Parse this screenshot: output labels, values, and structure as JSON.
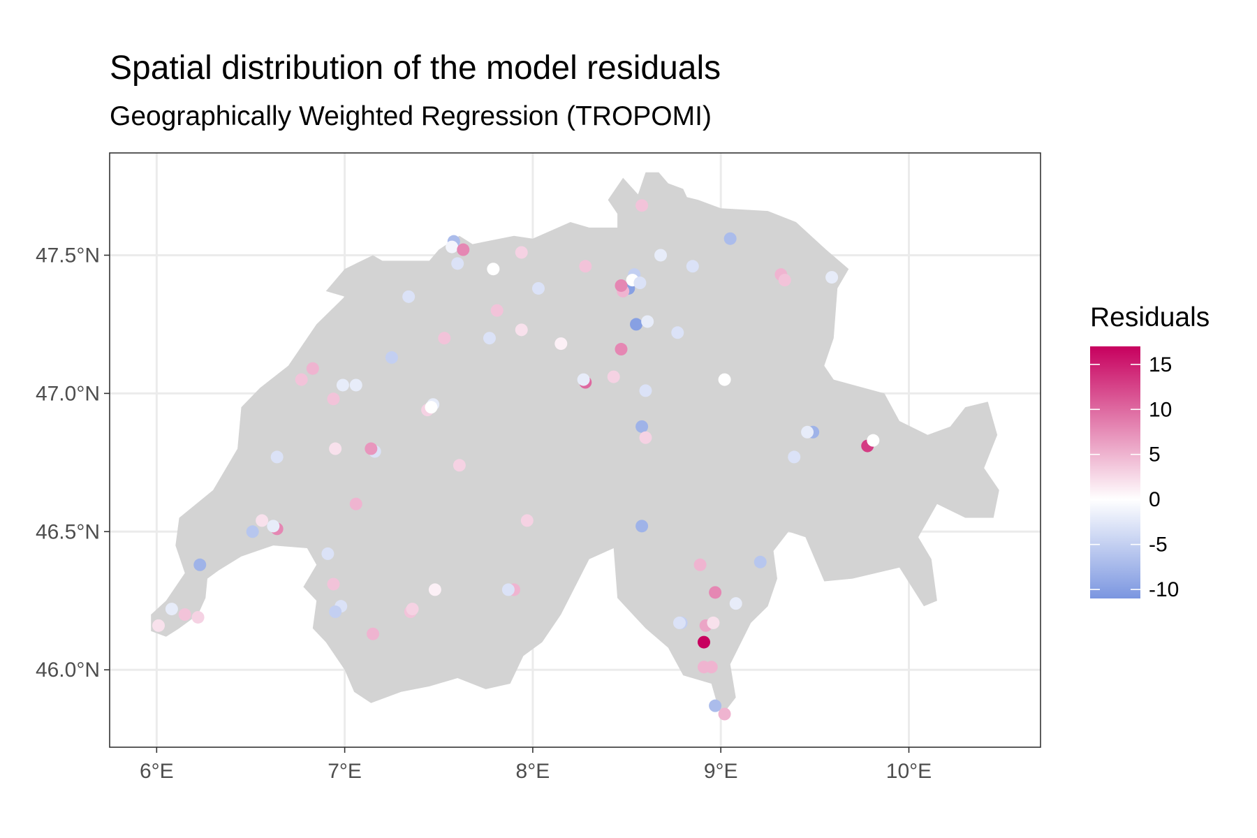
{
  "title": "Spatial distribution of the model residuals",
  "subtitle": "Geographically Weighted Regression (TROPOMI)",
  "colors": {
    "low": "#7b96e0",
    "mid": "#ffffff",
    "high": "#c7005e",
    "land": "#d3d3d3",
    "grid": "#ebebeb",
    "panel_border": "#333333"
  },
  "chart_data": {
    "type": "scatter",
    "title": "Spatial distribution of the model residuals",
    "subtitle": "Geographically Weighted Regression (TROPOMI)",
    "xlabel": "",
    "ylabel": "",
    "xlim": [
      5.75,
      10.7
    ],
    "ylim": [
      45.72,
      47.87
    ],
    "x_ticks": [
      6,
      7,
      8,
      9,
      10
    ],
    "x_tick_labels": [
      "6°E",
      "7°E",
      "8°E",
      "9°E",
      "10°E"
    ],
    "y_ticks": [
      46.0,
      46.5,
      47.0,
      47.5
    ],
    "y_tick_labels": [
      "46.0°N",
      "46.5°N",
      "47.0°N",
      "47.5°N"
    ],
    "grid": true,
    "legend": {
      "title": "Residuals",
      "placement": "right",
      "range": [
        -11,
        17
      ],
      "breaks": [
        15,
        10,
        5,
        0,
        -5,
        -10
      ],
      "break_labels": [
        "15",
        "10",
        "5",
        "0",
        "-5",
        "-10"
      ]
    },
    "region_outline": [
      [
        5.97,
        46.14
      ],
      [
        6.05,
        46.12
      ],
      [
        6.12,
        46.15
      ],
      [
        6.22,
        46.2
      ],
      [
        6.26,
        46.26
      ],
      [
        6.27,
        46.33
      ],
      [
        6.33,
        46.36
      ],
      [
        6.45,
        46.41
      ],
      [
        6.62,
        46.45
      ],
      [
        6.8,
        46.44
      ],
      [
        6.85,
        46.38
      ],
      [
        6.78,
        46.3
      ],
      [
        6.85,
        46.25
      ],
      [
        6.83,
        46.15
      ],
      [
        6.9,
        46.1
      ],
      [
        7.0,
        46.0
      ],
      [
        7.05,
        45.92
      ],
      [
        7.14,
        45.88
      ],
      [
        7.3,
        45.92
      ],
      [
        7.45,
        45.94
      ],
      [
        7.6,
        45.97
      ],
      [
        7.75,
        45.93
      ],
      [
        7.88,
        45.95
      ],
      [
        7.95,
        46.05
      ],
      [
        8.05,
        46.1
      ],
      [
        8.15,
        46.2
      ],
      [
        8.3,
        46.4
      ],
      [
        8.43,
        46.44
      ],
      [
        8.45,
        46.26
      ],
      [
        8.6,
        46.15
      ],
      [
        8.72,
        46.08
      ],
      [
        8.8,
        45.98
      ],
      [
        8.95,
        45.95
      ],
      [
        9.0,
        45.83
      ],
      [
        9.08,
        45.9
      ],
      [
        9.05,
        46.02
      ],
      [
        9.16,
        46.17
      ],
      [
        9.25,
        46.23
      ],
      [
        9.3,
        46.33
      ],
      [
        9.28,
        46.43
      ],
      [
        9.36,
        46.5
      ],
      [
        9.45,
        46.48
      ],
      [
        9.55,
        46.32
      ],
      [
        9.7,
        46.33
      ],
      [
        9.95,
        46.37
      ],
      [
        10.08,
        46.23
      ],
      [
        10.15,
        46.25
      ],
      [
        10.12,
        46.4
      ],
      [
        10.05,
        46.48
      ],
      [
        10.15,
        46.6
      ],
      [
        10.3,
        46.55
      ],
      [
        10.45,
        46.55
      ],
      [
        10.48,
        46.65
      ],
      [
        10.4,
        46.73
      ],
      [
        10.47,
        46.85
      ],
      [
        10.42,
        46.97
      ],
      [
        10.3,
        46.95
      ],
      [
        10.22,
        46.88
      ],
      [
        10.1,
        46.85
      ],
      [
        9.95,
        46.9
      ],
      [
        9.87,
        47.0
      ],
      [
        9.6,
        47.05
      ],
      [
        9.55,
        47.1
      ],
      [
        9.6,
        47.2
      ],
      [
        9.62,
        47.38
      ],
      [
        9.68,
        47.45
      ],
      [
        9.56,
        47.52
      ],
      [
        9.4,
        47.62
      ],
      [
        9.25,
        47.66
      ],
      [
        9.0,
        47.67
      ],
      [
        8.88,
        47.7
      ],
      [
        8.82,
        47.71
      ],
      [
        8.8,
        47.74
      ],
      [
        8.72,
        47.76
      ],
      [
        8.67,
        47.8
      ],
      [
        8.6,
        47.8
      ],
      [
        8.56,
        47.72
      ],
      [
        8.48,
        47.78
      ],
      [
        8.4,
        47.7
      ],
      [
        8.45,
        47.65
      ],
      [
        8.45,
        47.6
      ],
      [
        8.3,
        47.6
      ],
      [
        8.2,
        47.62
      ],
      [
        8.0,
        47.56
      ],
      [
        7.9,
        47.57
      ],
      [
        7.75,
        47.55
      ],
      [
        7.68,
        47.54
      ],
      [
        7.61,
        47.57
      ],
      [
        7.5,
        47.52
      ],
      [
        7.45,
        47.48
      ],
      [
        7.2,
        47.48
      ],
      [
        7.15,
        47.5
      ],
      [
        7.0,
        47.45
      ],
      [
        6.9,
        47.37
      ],
      [
        7.0,
        47.35
      ],
      [
        6.85,
        47.25
      ],
      [
        6.7,
        47.1
      ],
      [
        6.55,
        47.02
      ],
      [
        6.45,
        46.95
      ],
      [
        6.43,
        46.8
      ],
      [
        6.3,
        46.65
      ],
      [
        6.12,
        46.55
      ],
      [
        6.1,
        46.45
      ],
      [
        6.15,
        46.35
      ],
      [
        6.05,
        46.25
      ],
      [
        5.97,
        46.2
      ]
    ],
    "points": [
      {
        "lon": 9.78,
        "lat": 46.81,
        "residual": 13
      },
      {
        "lon": 9.81,
        "lat": 46.83,
        "residual": 0
      },
      {
        "lon": 8.91,
        "lat": 46.1,
        "residual": 17
      },
      {
        "lon": 8.92,
        "lat": 46.16,
        "residual": 6
      },
      {
        "lon": 8.97,
        "lat": 46.28,
        "residual": 8
      },
      {
        "lon": 8.89,
        "lat": 46.38,
        "residual": 5
      },
      {
        "lon": 8.96,
        "lat": 46.17,
        "residual": 2
      },
      {
        "lon": 8.91,
        "lat": 46.01,
        "residual": 5
      },
      {
        "lon": 8.95,
        "lat": 46.01,
        "residual": 5
      },
      {
        "lon": 9.02,
        "lat": 45.84,
        "residual": 5
      },
      {
        "lon": 8.97,
        "lat": 45.87,
        "residual": -7
      },
      {
        "lon": 8.79,
        "lat": 46.17,
        "residual": -5
      },
      {
        "lon": 8.78,
        "lat": 46.17,
        "residual": -3
      },
      {
        "lon": 9.08,
        "lat": 46.24,
        "residual": -2
      },
      {
        "lon": 9.21,
        "lat": 46.39,
        "residual": -6
      },
      {
        "lon": 8.58,
        "lat": 46.52,
        "residual": -8
      },
      {
        "lon": 9.39,
        "lat": 46.77,
        "residual": -3
      },
      {
        "lon": 9.49,
        "lat": 46.86,
        "residual": -8
      },
      {
        "lon": 9.46,
        "lat": 46.86,
        "residual": -2
      },
      {
        "lon": 9.02,
        "lat": 47.05,
        "residual": 0
      },
      {
        "lon": 8.58,
        "lat": 46.88,
        "residual": -8
      },
      {
        "lon": 8.6,
        "lat": 46.84,
        "residual": 3
      },
      {
        "lon": 8.6,
        "lat": 47.01,
        "residual": -3
      },
      {
        "lon": 8.77,
        "lat": 47.22,
        "residual": -3
      },
      {
        "lon": 8.55,
        "lat": 47.25,
        "residual": -10
      },
      {
        "lon": 8.61,
        "lat": 47.26,
        "residual": -2
      },
      {
        "lon": 8.47,
        "lat": 47.16,
        "residual": 8
      },
      {
        "lon": 8.43,
        "lat": 47.06,
        "residual": 3
      },
      {
        "lon": 8.28,
        "lat": 47.04,
        "residual": 10
      },
      {
        "lon": 8.51,
        "lat": 47.38,
        "residual": -10
      },
      {
        "lon": 8.48,
        "lat": 47.37,
        "residual": 5
      },
      {
        "lon": 8.54,
        "lat": 47.43,
        "residual": -5
      },
      {
        "lon": 8.53,
        "lat": 47.41,
        "residual": 0
      },
      {
        "lon": 8.57,
        "lat": 47.4,
        "residual": -3
      },
      {
        "lon": 8.47,
        "lat": 47.39,
        "residual": 8
      },
      {
        "lon": 8.68,
        "lat": 47.5,
        "residual": -2
      },
      {
        "lon": 8.85,
        "lat": 47.46,
        "residual": -3
      },
      {
        "lon": 9.05,
        "lat": 47.56,
        "residual": -7
      },
      {
        "lon": 9.32,
        "lat": 47.43,
        "residual": 5
      },
      {
        "lon": 9.34,
        "lat": 47.41,
        "residual": 4
      },
      {
        "lon": 9.59,
        "lat": 47.42,
        "residual": -2
      },
      {
        "lon": 8.58,
        "lat": 47.68,
        "residual": 4
      },
      {
        "lon": 8.28,
        "lat": 47.46,
        "residual": 4
      },
      {
        "lon": 7.94,
        "lat": 47.51,
        "residual": 3
      },
      {
        "lon": 8.03,
        "lat": 47.38,
        "residual": -3
      },
      {
        "lon": 8.15,
        "lat": 47.18,
        "residual": 1
      },
      {
        "lon": 7.94,
        "lat": 47.23,
        "residual": 2
      },
      {
        "lon": 7.81,
        "lat": 47.3,
        "residual": 4
      },
      {
        "lon": 7.79,
        "lat": 47.45,
        "residual": 0
      },
      {
        "lon": 7.77,
        "lat": 47.2,
        "residual": -3
      },
      {
        "lon": 7.58,
        "lat": 47.55,
        "residual": -7
      },
      {
        "lon": 7.57,
        "lat": 47.53,
        "residual": -1
      },
      {
        "lon": 7.63,
        "lat": 47.52,
        "residual": 8
      },
      {
        "lon": 7.6,
        "lat": 47.47,
        "residual": -3
      },
      {
        "lon": 7.34,
        "lat": 47.35,
        "residual": -3
      },
      {
        "lon": 7.53,
        "lat": 47.2,
        "residual": 4
      },
      {
        "lon": 7.25,
        "lat": 47.13,
        "residual": -5
      },
      {
        "lon": 7.44,
        "lat": 46.94,
        "residual": 3
      },
      {
        "lon": 7.47,
        "lat": 46.96,
        "residual": -2
      },
      {
        "lon": 7.46,
        "lat": 46.95,
        "residual": 0
      },
      {
        "lon": 7.61,
        "lat": 46.74,
        "residual": 3
      },
      {
        "lon": 7.97,
        "lat": 46.54,
        "residual": 3
      },
      {
        "lon": 7.16,
        "lat": 46.79,
        "residual": -3
      },
      {
        "lon": 7.14,
        "lat": 46.8,
        "residual": 7
      },
      {
        "lon": 6.95,
        "lat": 46.8,
        "residual": 2
      },
      {
        "lon": 7.06,
        "lat": 47.03,
        "residual": -2
      },
      {
        "lon": 6.99,
        "lat": 47.03,
        "residual": -2
      },
      {
        "lon": 6.94,
        "lat": 46.98,
        "residual": 4
      },
      {
        "lon": 6.83,
        "lat": 47.09,
        "residual": 5
      },
      {
        "lon": 6.77,
        "lat": 47.05,
        "residual": 4
      },
      {
        "lon": 6.64,
        "lat": 46.77,
        "residual": -3
      },
      {
        "lon": 7.06,
        "lat": 46.6,
        "residual": 5
      },
      {
        "lon": 6.51,
        "lat": 46.5,
        "residual": -6
      },
      {
        "lon": 6.56,
        "lat": 46.54,
        "residual": 2
      },
      {
        "lon": 6.64,
        "lat": 46.51,
        "residual": 8
      },
      {
        "lon": 6.62,
        "lat": 46.52,
        "residual": -2
      },
      {
        "lon": 6.23,
        "lat": 46.38,
        "residual": -8
      },
      {
        "lon": 6.91,
        "lat": 46.42,
        "residual": -3
      },
      {
        "lon": 6.94,
        "lat": 46.31,
        "residual": 4
      },
      {
        "lon": 6.98,
        "lat": 46.23,
        "residual": -3
      },
      {
        "lon": 6.95,
        "lat": 46.21,
        "residual": -5
      },
      {
        "lon": 6.08,
        "lat": 46.22,
        "residual": -2
      },
      {
        "lon": 6.15,
        "lat": 46.2,
        "residual": 4
      },
      {
        "lon": 6.22,
        "lat": 46.19,
        "residual": 3
      },
      {
        "lon": 6.01,
        "lat": 46.16,
        "residual": 2
      },
      {
        "lon": 7.15,
        "lat": 46.13,
        "residual": 5
      },
      {
        "lon": 7.35,
        "lat": 46.21,
        "residual": 4
      },
      {
        "lon": 7.36,
        "lat": 46.22,
        "residual": 3
      },
      {
        "lon": 7.48,
        "lat": 46.29,
        "residual": 1
      },
      {
        "lon": 7.9,
        "lat": 46.29,
        "residual": 5
      },
      {
        "lon": 7.87,
        "lat": 46.29,
        "residual": -3
      },
      {
        "lon": 8.27,
        "lat": 47.05,
        "residual": -2
      }
    ]
  }
}
